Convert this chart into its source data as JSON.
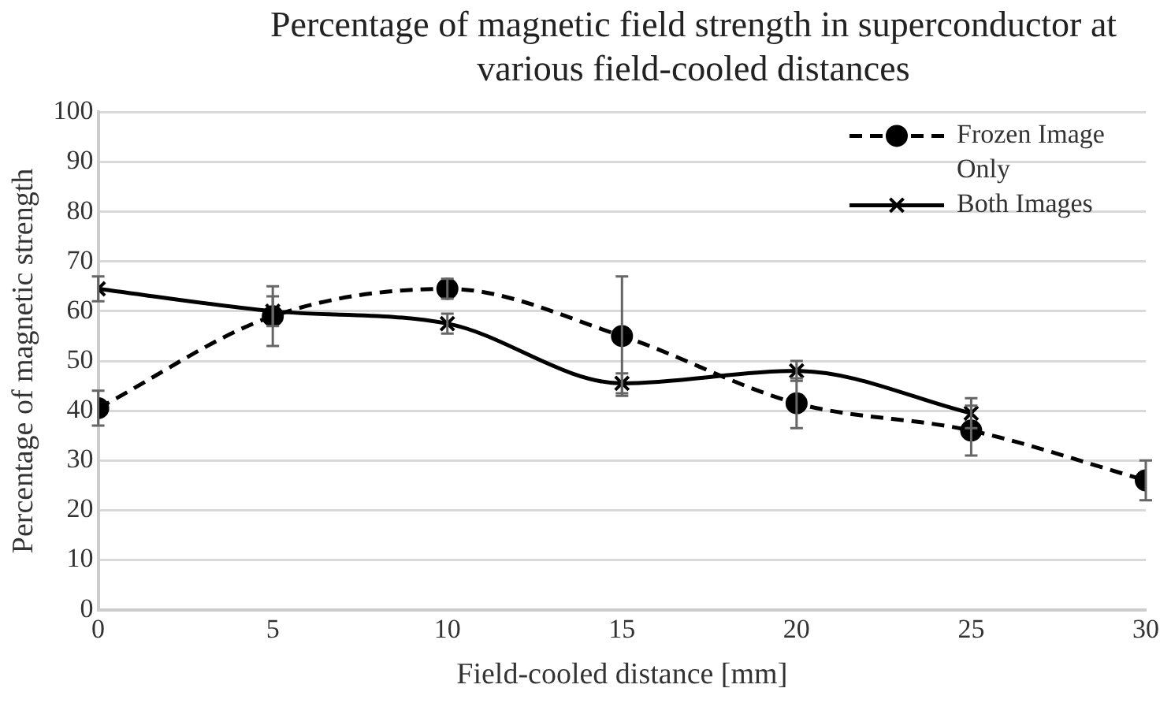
{
  "chart_data": {
    "type": "line",
    "title": "Percentage of magnetic field strength  in superconductor at various field-cooled distances",
    "xlabel": "Field-cooled distance [mm]",
    "ylabel": "Percentage of magnetic strength",
    "x": [
      0,
      5,
      10,
      15,
      20,
      25,
      30
    ],
    "xlim": [
      0,
      30
    ],
    "xticks": [
      0,
      5,
      10,
      15,
      20,
      25,
      30
    ],
    "ylim": [
      0,
      100
    ],
    "yticks": [
      0,
      10,
      20,
      30,
      40,
      50,
      60,
      70,
      80,
      90,
      100
    ],
    "grid": "y",
    "legend": "top right",
    "series": [
      {
        "name": "Frozen Image Only",
        "color": "#000000",
        "marker": "circle",
        "line_style": "dashed",
        "values": [
          40.5,
          59,
          64.5,
          55,
          41.5,
          36,
          26
        ],
        "errors": [
          3.5,
          6,
          2,
          12,
          5,
          5,
          4
        ]
      },
      {
        "name": "Both Images",
        "color": "#000000",
        "marker": "cross",
        "line_style": "solid",
        "values": [
          64.5,
          60,
          57.5,
          45.5,
          48,
          39.5,
          null
        ],
        "errors": [
          2.5,
          3,
          2,
          2,
          2,
          3,
          null
        ]
      }
    ]
  }
}
